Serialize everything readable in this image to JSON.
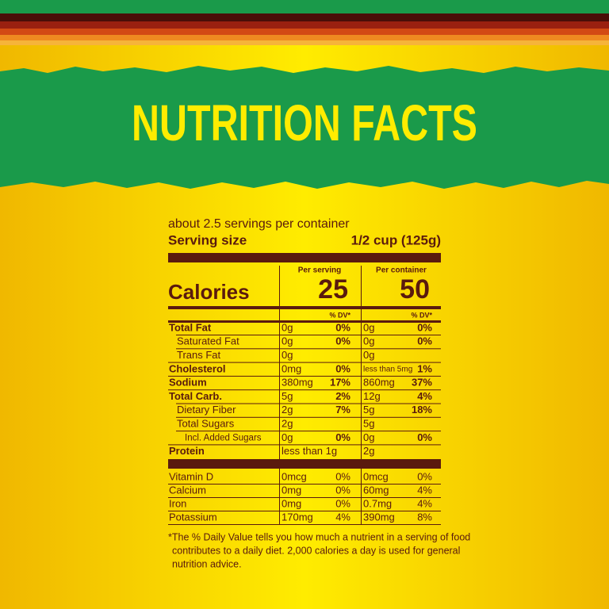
{
  "header": {
    "title": "NUTRITION FACTS"
  },
  "label": {
    "servings": "about 2.5 servings per container",
    "serving_size_label": "Serving size",
    "serving_size_value": "1/2 cup (125g)",
    "calories_label": "Calories",
    "columns": [
      {
        "heading": "Per serving",
        "calories": 25,
        "dv_heading": "% DV*"
      },
      {
        "heading": "Per container",
        "calories": 50,
        "dv_heading": "% DV*"
      }
    ],
    "rows": [
      {
        "name": "Total Fat",
        "cells": [
          {
            "amount": "0g",
            "dv": "0%"
          },
          {
            "amount": "0g",
            "dv": "0%"
          }
        ]
      },
      {
        "name": "Saturated Fat",
        "cells": [
          {
            "amount": "0g",
            "dv": "0%"
          },
          {
            "amount": "0g",
            "dv": "0%"
          }
        ]
      },
      {
        "name": "Trans Fat",
        "cells": [
          {
            "amount": "0g"
          },
          {
            "amount": "0g"
          }
        ]
      },
      {
        "name": "Cholesterol",
        "cells": [
          {
            "amount": "0mg",
            "dv": "0%"
          },
          {
            "amount": "less than 5mg",
            "dv": "1%"
          }
        ]
      },
      {
        "name": "Sodium",
        "cells": [
          {
            "amount": "380mg",
            "dv": "17%"
          },
          {
            "amount": "860mg",
            "dv": "37%"
          }
        ]
      },
      {
        "name": "Total Carb.",
        "cells": [
          {
            "amount": "5g",
            "dv": "2%"
          },
          {
            "amount": "12g",
            "dv": "4%"
          }
        ]
      },
      {
        "name": "Dietary Fiber",
        "cells": [
          {
            "amount": "2g",
            "dv": "7%"
          },
          {
            "amount": "5g",
            "dv": "18%"
          }
        ]
      },
      {
        "name": "Total Sugars",
        "cells": [
          {
            "amount": "2g"
          },
          {
            "amount": "5g"
          }
        ]
      },
      {
        "name": "Incl. Added Sugars",
        "cells": [
          {
            "amount": "0g",
            "dv": "0%"
          },
          {
            "amount": "0g",
            "dv": "0%"
          }
        ]
      },
      {
        "name": "Protein",
        "cells": [
          {
            "amount": "less than 1g"
          },
          {
            "amount": "2g"
          }
        ]
      }
    ],
    "vitamins": [
      {
        "name": "Vitamin D",
        "cells": [
          {
            "amount": "0mcg",
            "dv": "0%"
          },
          {
            "amount": "0mcg",
            "dv": "0%"
          }
        ]
      },
      {
        "name": "Calcium",
        "cells": [
          {
            "amount": "0mg",
            "dv": "0%"
          },
          {
            "amount": "60mg",
            "dv": "4%"
          }
        ]
      },
      {
        "name": "Iron",
        "cells": [
          {
            "amount": "0mg",
            "dv": "0%"
          },
          {
            "amount": "0.7mg",
            "dv": "4%"
          }
        ]
      },
      {
        "name": "Potassium",
        "cells": [
          {
            "amount": "170mg",
            "dv": "4%"
          },
          {
            "amount": "390mg",
            "dv": "8%"
          }
        ]
      }
    ],
    "footnote": [
      "*The % Daily Value tells you how much a nutrient in a serving of food",
      "contributes to a daily diet. 2,000 calories a day is used for general",
      "nutrition advice."
    ]
  }
}
